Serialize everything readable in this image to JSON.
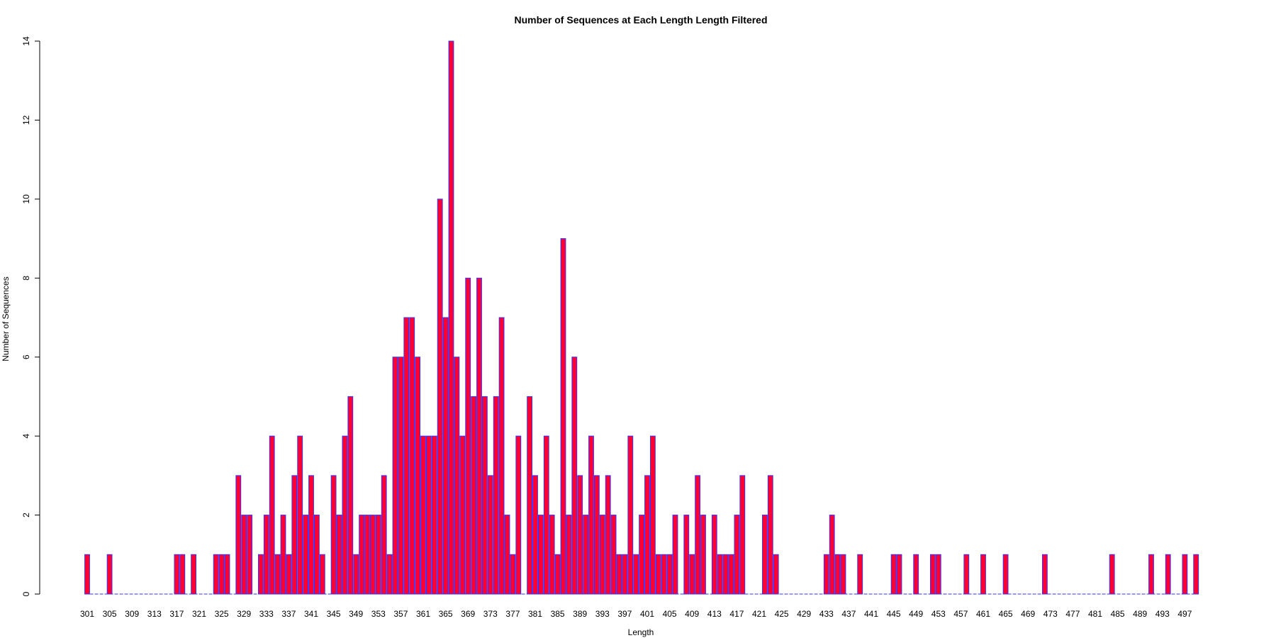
{
  "chart_data": {
    "type": "bar",
    "title": "Number of Sequences at Each Length  Length Filtered",
    "xlabel": "Length",
    "ylabel": "Number of Sequences",
    "ylim": [
      0,
      14
    ],
    "yticks": [
      0,
      2,
      4,
      6,
      8,
      10,
      12,
      14
    ],
    "x_start": 301,
    "x_end": 499,
    "x_tick_step": 4,
    "values": [
      1,
      0,
      0,
      0,
      1,
      0,
      0,
      0,
      0,
      0,
      0,
      0,
      0,
      0,
      0,
      0,
      1,
      1,
      0,
      1,
      0,
      0,
      0,
      1,
      1,
      1,
      0,
      3,
      2,
      2,
      0,
      1,
      2,
      4,
      1,
      2,
      1,
      3,
      4,
      2,
      3,
      2,
      1,
      0,
      3,
      2,
      4,
      5,
      1,
      2,
      2,
      2,
      2,
      3,
      1,
      6,
      6,
      7,
      7,
      6,
      4,
      4,
      4,
      10,
      7,
      14,
      6,
      4,
      8,
      5,
      8,
      5,
      3,
      5,
      7,
      2,
      1,
      4,
      0,
      5,
      3,
      2,
      4,
      2,
      1,
      9,
      2,
      6,
      3,
      2,
      4,
      3,
      2,
      3,
      2,
      1,
      1,
      4,
      1,
      2,
      3,
      4,
      1,
      1,
      1,
      2,
      0,
      2,
      1,
      3,
      2,
      0,
      2,
      1,
      1,
      1,
      2,
      3,
      0,
      0,
      0,
      2,
      3,
      1,
      0,
      0,
      0,
      0,
      0,
      0,
      0,
      0,
      1,
      2,
      1,
      1,
      0,
      0,
      1,
      0,
      0,
      0,
      0,
      0,
      1,
      1,
      0,
      0,
      1,
      0,
      0,
      1,
      1,
      0,
      0,
      0,
      0,
      1,
      0,
      0,
      1,
      0,
      0,
      0,
      1,
      0,
      0,
      0,
      0,
      0,
      0,
      1,
      0,
      0,
      0,
      0,
      0,
      0,
      0,
      0,
      0,
      0,
      0,
      1,
      0,
      0,
      0,
      0,
      0,
      0,
      1,
      0,
      0,
      1,
      0,
      0,
      1,
      0,
      1
    ],
    "grid": false,
    "legend": "none",
    "colors": {
      "fill": "#ff0033",
      "border": "#3333ff",
      "baseline": "#3333ff",
      "axis": "#000000"
    }
  }
}
